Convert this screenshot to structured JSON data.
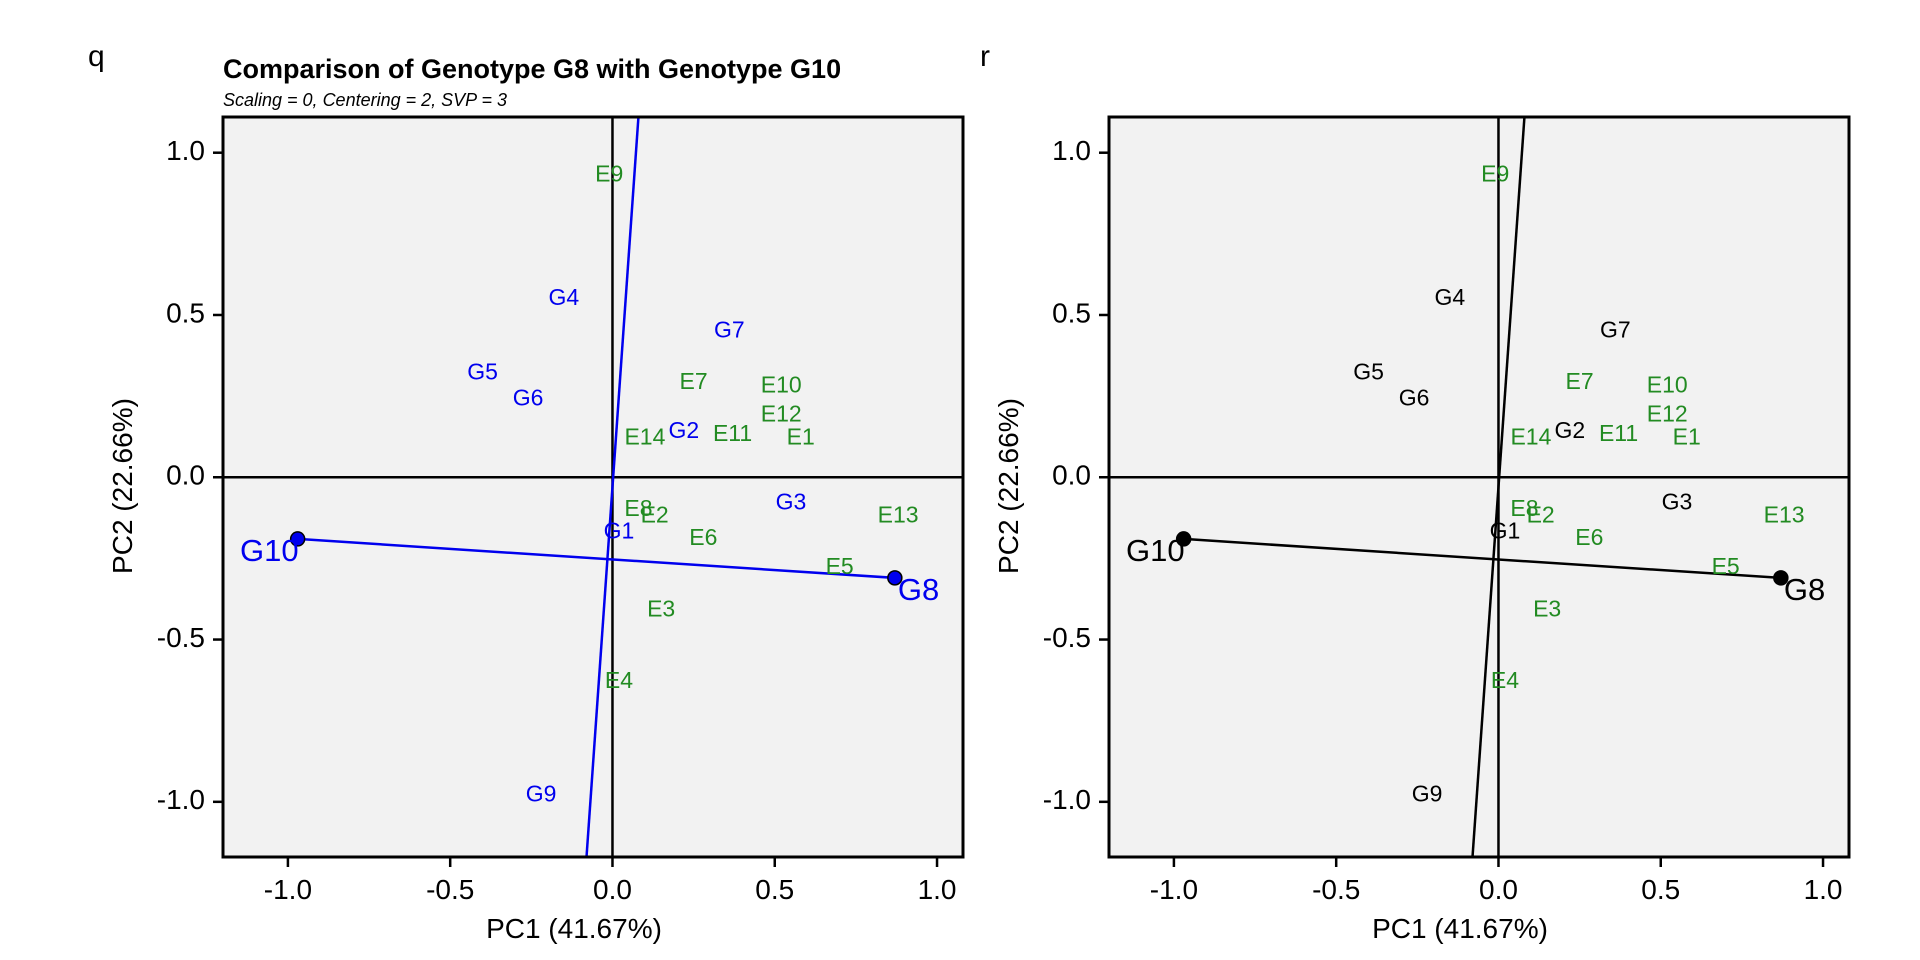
{
  "colors": {
    "panel_bg": "#f2f2f2",
    "environment": "#228b22",
    "genotype_left": "#0000ee",
    "genotype_right": "#000000",
    "axis": "#000000"
  },
  "chart_data": [
    {
      "type": "scatter",
      "panel_letter": "q",
      "title": "Comparison of Genotype G8 with Genotype G10",
      "subtitle": "Scaling = 0, Centering = 2, SVP = 3",
      "xlabel": "PC1 (41.67%)",
      "ylabel": "PC2 (22.66%)",
      "xlim": [
        -1.2,
        1.08
      ],
      "ylim": [
        -1.17,
        1.11
      ],
      "xticks": [
        -1.0,
        -0.5,
        0.0,
        0.5,
        1.0
      ],
      "xtick_labels": [
        "-1.0",
        "-0.5",
        "0.0",
        "0.5",
        "1.0"
      ],
      "yticks": [
        -1.0,
        -0.5,
        0.0,
        0.5,
        1.0
      ],
      "ytick_labels": [
        "-1.0",
        "-0.5",
        "0.0",
        "0.5",
        "1.0"
      ],
      "genotype_color": "#0000ee",
      "comparison": {
        "from": "G10",
        "to": "G8",
        "from_xy": [
          -0.97,
          -0.19
        ],
        "to_xy": [
          0.87,
          -0.31
        ]
      },
      "perpendicular_line": {
        "p1": [
          0.08,
          1.11
        ],
        "p2": [
          -0.08,
          -1.17
        ]
      },
      "genotypes": [
        {
          "label": "G1",
          "x": 0.02,
          "y": -0.17
        },
        {
          "label": "G2",
          "x": 0.22,
          "y": 0.14
        },
        {
          "label": "G3",
          "x": 0.55,
          "y": -0.08
        },
        {
          "label": "G4",
          "x": -0.15,
          "y": 0.55
        },
        {
          "label": "G5",
          "x": -0.4,
          "y": 0.32
        },
        {
          "label": "G6",
          "x": -0.26,
          "y": 0.24
        },
        {
          "label": "G7",
          "x": 0.36,
          "y": 0.45
        },
        {
          "label": "G9",
          "x": -0.22,
          "y": -0.98
        },
        {
          "label": "G8",
          "x": 0.87,
          "y": -0.31,
          "marker": true
        },
        {
          "label": "G10",
          "x": -0.97,
          "y": -0.19,
          "marker": true
        }
      ],
      "environments": [
        {
          "label": "E1",
          "x": 0.58,
          "y": 0.12
        },
        {
          "label": "E2",
          "x": 0.13,
          "y": -0.12
        },
        {
          "label": "E3",
          "x": 0.15,
          "y": -0.41
        },
        {
          "label": "E4",
          "x": 0.02,
          "y": -0.63
        },
        {
          "label": "E5",
          "x": 0.7,
          "y": -0.28
        },
        {
          "label": "E6",
          "x": 0.28,
          "y": -0.19
        },
        {
          "label": "E7",
          "x": 0.25,
          "y": 0.29
        },
        {
          "label": "E8",
          "x": 0.08,
          "y": -0.1
        },
        {
          "label": "E9",
          "x": -0.01,
          "y": 0.93
        },
        {
          "label": "E10",
          "x": 0.52,
          "y": 0.28
        },
        {
          "label": "E11",
          "x": 0.37,
          "y": 0.13
        },
        {
          "label": "E12",
          "x": 0.52,
          "y": 0.19
        },
        {
          "label": "E13",
          "x": 0.88,
          "y": -0.12
        },
        {
          "label": "E14",
          "x": 0.1,
          "y": 0.12
        }
      ]
    },
    {
      "type": "scatter",
      "panel_letter": "r",
      "title": "",
      "subtitle": "",
      "xlabel": "PC1 (41.67%)",
      "ylabel": "PC2 (22.66%)",
      "xlim": [
        -1.2,
        1.08
      ],
      "ylim": [
        -1.17,
        1.11
      ],
      "xticks": [
        -1.0,
        -0.5,
        0.0,
        0.5,
        1.0
      ],
      "xtick_labels": [
        "-1.0",
        "-0.5",
        "0.0",
        "0.5",
        "1.0"
      ],
      "yticks": [
        -1.0,
        -0.5,
        0.0,
        0.5,
        1.0
      ],
      "ytick_labels": [
        "-1.0",
        "-0.5",
        "0.0",
        "0.5",
        "1.0"
      ],
      "genotype_color": "#000000",
      "comparison": {
        "from": "G10",
        "to": "G8",
        "from_xy": [
          -0.97,
          -0.19
        ],
        "to_xy": [
          0.87,
          -0.31
        ]
      },
      "perpendicular_line": {
        "p1": [
          0.08,
          1.11
        ],
        "p2": [
          -0.08,
          -1.17
        ]
      },
      "genotypes": [
        {
          "label": "G1",
          "x": 0.02,
          "y": -0.17
        },
        {
          "label": "G2",
          "x": 0.22,
          "y": 0.14
        },
        {
          "label": "G3",
          "x": 0.55,
          "y": -0.08
        },
        {
          "label": "G4",
          "x": -0.15,
          "y": 0.55
        },
        {
          "label": "G5",
          "x": -0.4,
          "y": 0.32
        },
        {
          "label": "G6",
          "x": -0.26,
          "y": 0.24
        },
        {
          "label": "G7",
          "x": 0.36,
          "y": 0.45
        },
        {
          "label": "G9",
          "x": -0.22,
          "y": -0.98
        },
        {
          "label": "G8",
          "x": 0.87,
          "y": -0.31,
          "marker": true
        },
        {
          "label": "G10",
          "x": -0.97,
          "y": -0.19,
          "marker": true
        }
      ],
      "environments": [
        {
          "label": "E1",
          "x": 0.58,
          "y": 0.12
        },
        {
          "label": "E2",
          "x": 0.13,
          "y": -0.12
        },
        {
          "label": "E3",
          "x": 0.15,
          "y": -0.41
        },
        {
          "label": "E4",
          "x": 0.02,
          "y": -0.63
        },
        {
          "label": "E5",
          "x": 0.7,
          "y": -0.28
        },
        {
          "label": "E6",
          "x": 0.28,
          "y": -0.19
        },
        {
          "label": "E7",
          "x": 0.25,
          "y": 0.29
        },
        {
          "label": "E8",
          "x": 0.08,
          "y": -0.1
        },
        {
          "label": "E9",
          "x": -0.01,
          "y": 0.93
        },
        {
          "label": "E10",
          "x": 0.52,
          "y": 0.28
        },
        {
          "label": "E11",
          "x": 0.37,
          "y": 0.13
        },
        {
          "label": "E12",
          "x": 0.52,
          "y": 0.19
        },
        {
          "label": "E13",
          "x": 0.88,
          "y": -0.12
        },
        {
          "label": "E14",
          "x": 0.1,
          "y": 0.12
        }
      ]
    }
  ]
}
